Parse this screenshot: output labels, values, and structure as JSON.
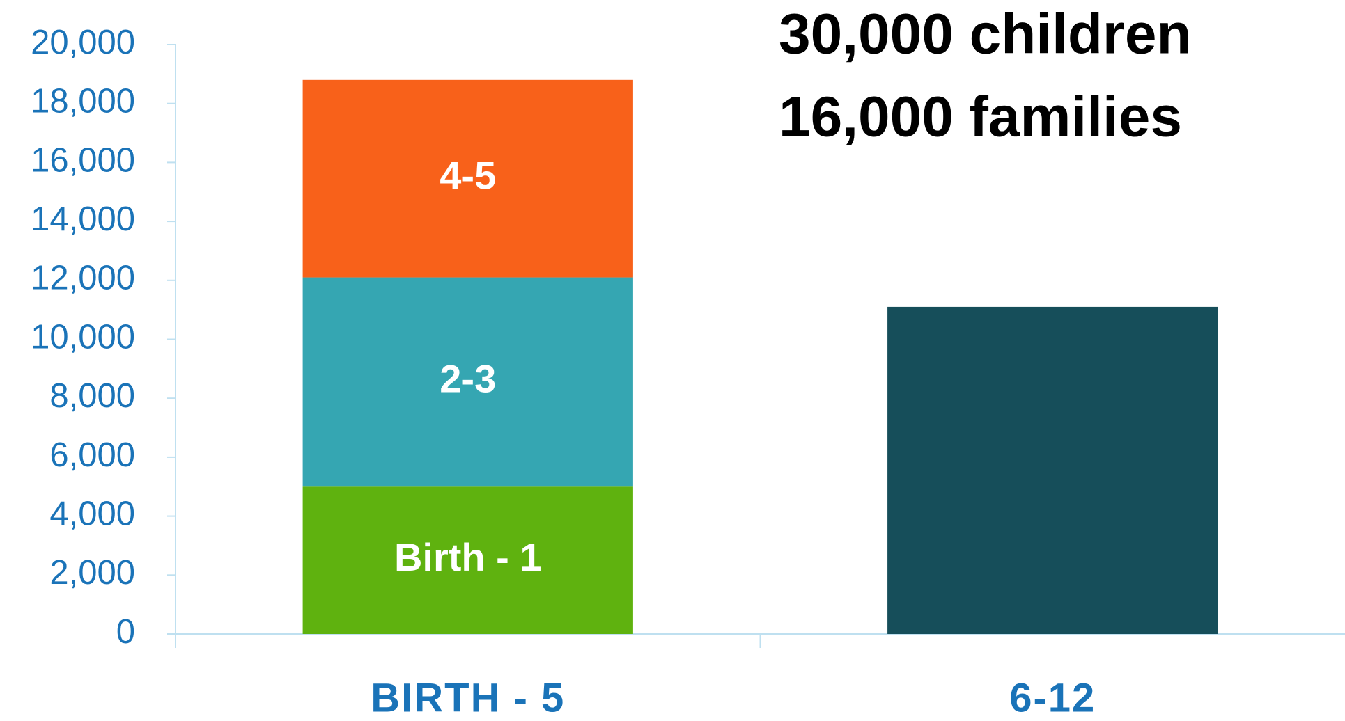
{
  "chart_data": {
    "type": "stacked_bar",
    "annotations": [
      "30,000 children",
      "16,000 families"
    ],
    "categories": [
      "BIRTH - 5",
      "6-12"
    ],
    "series": [
      {
        "name": "Birth - 1",
        "color": "#5fb20f",
        "values": [
          5000,
          null
        ]
      },
      {
        "name": "2-3",
        "color": "#35a6b2",
        "values": [
          7100,
          null
        ]
      },
      {
        "name": "4-5",
        "color": "#f8611a",
        "values": [
          6700,
          null
        ]
      },
      {
        "color": "#164e5a",
        "values": [
          null,
          11100
        ]
      }
    ],
    "ylim": [
      0,
      20000
    ],
    "yticks": [
      0,
      {
        "value": 2000,
        "label": "2,000"
      },
      {
        "value": 4000,
        "label": "4,000"
      },
      {
        "value": 6000,
        "label": "6,000"
      },
      {
        "value": 8000,
        "label": "8,000"
      },
      {
        "value": 10000,
        "label": "10,000"
      },
      {
        "value": 12000,
        "label": "12,000"
      },
      {
        "value": 14000,
        "label": "14,000"
      },
      {
        "value": 16000,
        "label": "16,000"
      },
      {
        "value": 18000,
        "label": "18,000"
      },
      {
        "value": 20000,
        "label": "20,000"
      }
    ]
  }
}
